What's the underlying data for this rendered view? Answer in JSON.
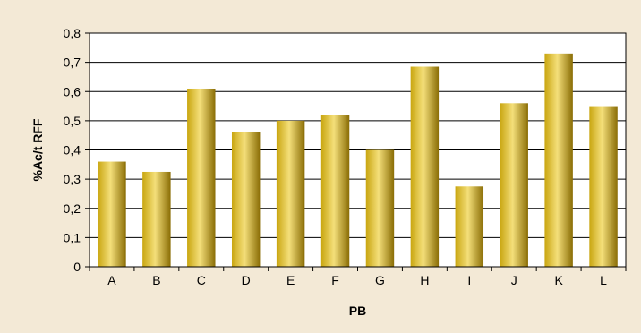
{
  "chart_data": {
    "type": "bar",
    "title": "",
    "xlabel": "PB",
    "ylabel": "%Ac/t RFF",
    "categories": [
      "A",
      "B",
      "C",
      "D",
      "E",
      "F",
      "G",
      "H",
      "I",
      "J",
      "K",
      "L"
    ],
    "values": [
      0.36,
      0.325,
      0.61,
      0.46,
      0.5,
      0.52,
      0.4,
      0.685,
      0.275,
      0.56,
      0.73,
      0.55
    ],
    "ylim": [
      0,
      0.8
    ],
    "yticks": [
      0,
      0.1,
      0.2,
      0.3,
      0.4,
      0.5,
      0.6,
      0.7,
      0.8
    ],
    "ytick_labels": [
      "0",
      "0,1",
      "0,2",
      "0,3",
      "0,4",
      "0,5",
      "0,6",
      "0,7",
      "0,8"
    ],
    "grid": true,
    "legend": "none",
    "colors": {
      "background": "#f3e9d6",
      "plot_area": "#ffffff",
      "bar_light": "#f4df7a",
      "bar_mid": "#c9a610",
      "bar_dark": "#8a6d05",
      "gridline": "#000000"
    }
  }
}
